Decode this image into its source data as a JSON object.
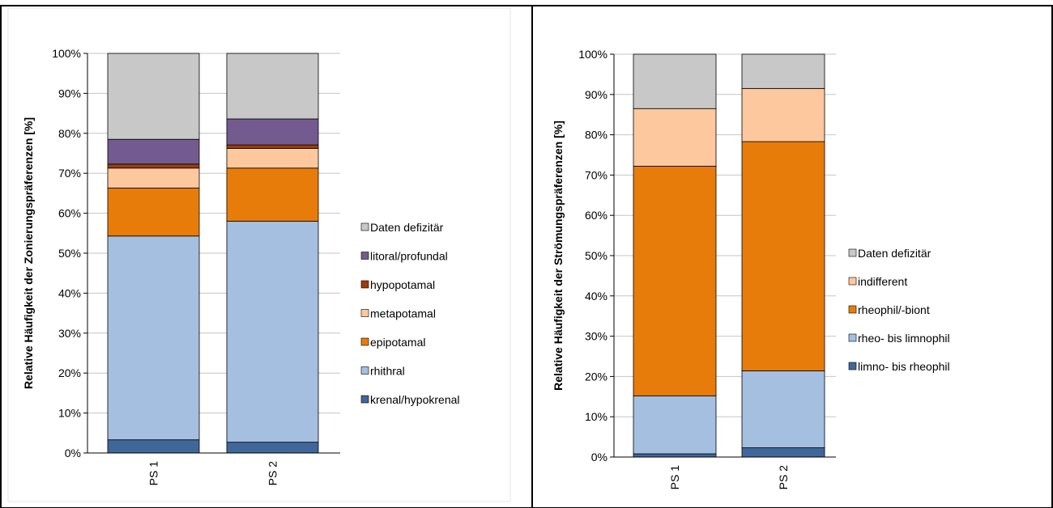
{
  "colors": {
    "gray": "#c8c8c8",
    "purple": "#735b8f",
    "darkorange": "#9c3d0b",
    "peach": "#fdc89e",
    "orange": "#e87c0b",
    "lightblue": "#a4bfe0",
    "steelblue": "#40679a"
  },
  "chart_data": [
    {
      "type": "bar",
      "stacked": true,
      "categories": [
        "PS 1",
        "PS 2"
      ],
      "ylabel": "Relative Häufigkeit der Zonierungspräferenzen [%]",
      "ylim": [
        0,
        100
      ],
      "yticks": [
        "0%",
        "10%",
        "20%",
        "30%",
        "40%",
        "50%",
        "60%",
        "70%",
        "80%",
        "90%",
        "100%"
      ],
      "legend_position": "right",
      "series": [
        {
          "name": "krenal/hypokrenal",
          "color": "#40679a",
          "values": [
            3.3,
            2.7
          ]
        },
        {
          "name": "rhithral",
          "color": "#a4bfe0",
          "values": [
            51.0,
            55.3
          ]
        },
        {
          "name": "epipotamal",
          "color": "#e87c0b",
          "values": [
            12.0,
            13.3
          ]
        },
        {
          "name": "metapotamal",
          "color": "#fdc89e",
          "values": [
            5.0,
            4.9
          ]
        },
        {
          "name": "hypopotamal",
          "color": "#9c3d0b",
          "values": [
            1.0,
            0.9
          ]
        },
        {
          "name": "litoral/profundal",
          "color": "#735b8f",
          "values": [
            6.2,
            6.5
          ]
        },
        {
          "name": "Daten defizitär",
          "color": "#c8c8c8",
          "values": [
            21.5,
            16.4
          ]
        }
      ]
    },
    {
      "type": "bar",
      "stacked": true,
      "categories": [
        "PS 1",
        "PS 2"
      ],
      "ylabel": "Relative Häufigkeit der Strömungspräferenzen [%]",
      "ylim": [
        0,
        100
      ],
      "yticks": [
        "0%",
        "10%",
        "20%",
        "30%",
        "40%",
        "50%",
        "60%",
        "70%",
        "80%",
        "90%",
        "100%"
      ],
      "legend_position": "right",
      "series": [
        {
          "name": "limno- bis rheophil",
          "color": "#40679a",
          "values": [
            0.8,
            2.3
          ]
        },
        {
          "name": "rheo- bis limnophil",
          "color": "#a4bfe0",
          "values": [
            14.4,
            19.1
          ]
        },
        {
          "name": "rheophil/-biont",
          "color": "#e87c0b",
          "values": [
            57.0,
            56.9
          ]
        },
        {
          "name": "indifferent",
          "color": "#fdc89e",
          "values": [
            14.3,
            13.2
          ]
        },
        {
          "name": "Daten defizitär",
          "color": "#c8c8c8",
          "values": [
            13.5,
            8.5
          ]
        }
      ]
    }
  ]
}
